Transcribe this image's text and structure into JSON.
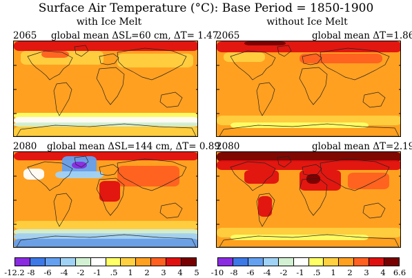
{
  "title": "Surface Air Temperature (°C): Base Period = 1850-1900",
  "columns": [
    {
      "title": "with Ice Melt"
    },
    {
      "title": "without Ice Melt"
    }
  ],
  "panels": [
    {
      "year": "2065",
      "caption": "global mean ΔSL=60 cm, ΔT= 1.47",
      "variant": "with-melt-2065"
    },
    {
      "year": "2065",
      "caption": "global mean ΔT=1.86",
      "variant": "no-melt-2065"
    },
    {
      "year": "2080",
      "caption": "global mean ΔSL=144 cm, ΔT= 0.89",
      "variant": "with-melt-2080"
    },
    {
      "year": "2080",
      "caption": "global mean ΔT=2.19",
      "variant": "no-melt-2080"
    }
  ],
  "colorbars": [
    {
      "labels": [
        "-12.2",
        "-8",
        "-6",
        "-4",
        "-2",
        "-1",
        ".5",
        "1",
        "2",
        "3",
        "4",
        "5"
      ],
      "colors": [
        "#8a2be2",
        "#3c78e6",
        "#64a0f0",
        "#a0d2f5",
        "#d2f0d2",
        "#ffffff",
        "#ffff66",
        "#ffd040",
        "#ffa020",
        "#ff6020",
        "#e01010",
        "#780000"
      ]
    },
    {
      "labels": [
        "-10",
        "-8",
        "-6",
        "-4",
        "-2",
        "-1",
        ".5",
        "1",
        "2",
        "3",
        "4",
        "6.6"
      ],
      "colors": [
        "#8a2be2",
        "#3c78e6",
        "#64a0f0",
        "#a0d2f5",
        "#d2f0d2",
        "#ffffff",
        "#ffff66",
        "#ffd040",
        "#ffa020",
        "#ff6020",
        "#e01010",
        "#780000"
      ]
    }
  ]
}
